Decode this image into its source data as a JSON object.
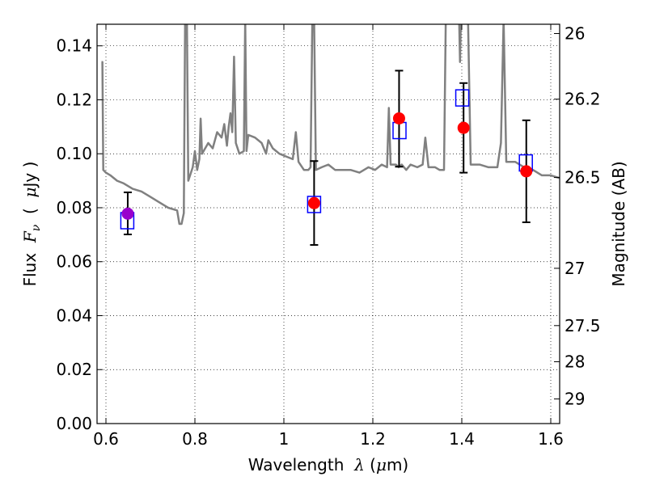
{
  "chart_data": {
    "type": "scatter",
    "xlabel_prefix": "Wavelength  ",
    "xlabel_symbol": "λ",
    "xlabel_suffix": " (",
    "xlabel_mu": "μ",
    "xlabel_unit": "m)",
    "ylabel_prefix": "Flux  ",
    "ylabel_symbol": "F",
    "ylabel_sub": "ν",
    "ylabel_paren_open": "  (  ",
    "ylabel_mu": "μ",
    "ylabel_unit": "Jy  )",
    "y2label": "Magnitude (AB)",
    "xlim": [
      0.58,
      1.62
    ],
    "ylim": [
      0.0,
      0.148
    ],
    "grid": true,
    "x_ticks": [
      {
        "value": 0.6,
        "label": "0.6"
      },
      {
        "value": 0.8,
        "label": "0.8"
      },
      {
        "value": 1.0,
        "label": "1"
      },
      {
        "value": 1.2,
        "label": "1.2"
      },
      {
        "value": 1.4,
        "label": "1.4"
      },
      {
        "value": 1.6,
        "label": "1.6"
      }
    ],
    "y_ticks": [
      {
        "value": 0.0,
        "label": "0.00"
      },
      {
        "value": 0.02,
        "label": "0.02"
      },
      {
        "value": 0.04,
        "label": "0.04"
      },
      {
        "value": 0.06,
        "label": "0.06"
      },
      {
        "value": 0.08,
        "label": "0.08"
      },
      {
        "value": 0.1,
        "label": "0.10"
      },
      {
        "value": 0.12,
        "label": "0.12"
      },
      {
        "value": 0.14,
        "label": "0.14"
      }
    ],
    "y2_ticks": [
      {
        "mag": 26.0,
        "label": "26"
      },
      {
        "mag": 26.2,
        "label": "26.2"
      },
      {
        "mag": 26.5,
        "label": "26.5"
      },
      {
        "mag": 27.0,
        "label": "27"
      },
      {
        "mag": 27.5,
        "label": "27.5"
      },
      {
        "mag": 28.0,
        "label": "28"
      },
      {
        "mag": 29.0,
        "label": "29"
      }
    ],
    "model_spectrum": {
      "color": "#808080",
      "points": [
        [
          0.59,
          0.134
        ],
        [
          0.592,
          0.134
        ],
        [
          0.594,
          0.094
        ],
        [
          0.6,
          0.093
        ],
        [
          0.61,
          0.092
        ],
        [
          0.625,
          0.09
        ],
        [
          0.64,
          0.089
        ],
        [
          0.66,
          0.087
        ],
        [
          0.68,
          0.086
        ],
        [
          0.7,
          0.084
        ],
        [
          0.72,
          0.082
        ],
        [
          0.74,
          0.08
        ],
        [
          0.76,
          0.079
        ],
        [
          0.765,
          0.074
        ],
        [
          0.77,
          0.074
        ],
        [
          0.775,
          0.078
        ],
        [
          0.778,
          0.15
        ],
        [
          0.782,
          0.15
        ],
        [
          0.785,
          0.09
        ],
        [
          0.795,
          0.095
        ],
        [
          0.8,
          0.101
        ],
        [
          0.805,
          0.094
        ],
        [
          0.81,
          0.098
        ],
        [
          0.813,
          0.113
        ],
        [
          0.816,
          0.1
        ],
        [
          0.83,
          0.104
        ],
        [
          0.84,
          0.102
        ],
        [
          0.85,
          0.108
        ],
        [
          0.86,
          0.106
        ],
        [
          0.866,
          0.111
        ],
        [
          0.872,
          0.103
        ],
        [
          0.876,
          0.11
        ],
        [
          0.88,
          0.115
        ],
        [
          0.884,
          0.108
        ],
        [
          0.888,
          0.136
        ],
        [
          0.892,
          0.104
        ],
        [
          0.9,
          0.1
        ],
        [
          0.91,
          0.101
        ],
        [
          0.913,
          0.15
        ],
        [
          0.916,
          0.101
        ],
        [
          0.92,
          0.107
        ],
        [
          0.935,
          0.106
        ],
        [
          0.95,
          0.104
        ],
        [
          0.96,
          0.1
        ],
        [
          0.965,
          0.105
        ],
        [
          0.975,
          0.102
        ],
        [
          0.99,
          0.1
        ],
        [
          1.005,
          0.099
        ],
        [
          1.02,
          0.098
        ],
        [
          1.027,
          0.108
        ],
        [
          1.033,
          0.097
        ],
        [
          1.045,
          0.094
        ],
        [
          1.055,
          0.094
        ],
        [
          1.06,
          0.095
        ],
        [
          1.064,
          0.15
        ],
        [
          1.068,
          0.15
        ],
        [
          1.072,
          0.094
        ],
        [
          1.085,
          0.095
        ],
        [
          1.1,
          0.096
        ],
        [
          1.115,
          0.094
        ],
        [
          1.13,
          0.094
        ],
        [
          1.15,
          0.094
        ],
        [
          1.17,
          0.093
        ],
        [
          1.19,
          0.095
        ],
        [
          1.205,
          0.094
        ],
        [
          1.22,
          0.096
        ],
        [
          1.232,
          0.095
        ],
        [
          1.236,
          0.117
        ],
        [
          1.24,
          0.096
        ],
        [
          1.252,
          0.096
        ],
        [
          1.258,
          0.095
        ],
        [
          1.265,
          0.096
        ],
        [
          1.275,
          0.094
        ],
        [
          1.285,
          0.096
        ],
        [
          1.3,
          0.095
        ],
        [
          1.312,
          0.096
        ],
        [
          1.318,
          0.106
        ],
        [
          1.325,
          0.095
        ],
        [
          1.34,
          0.095
        ],
        [
          1.35,
          0.094
        ],
        [
          1.36,
          0.094
        ],
        [
          1.364,
          0.15
        ],
        [
          1.384,
          0.15
        ],
        [
          1.394,
          0.15
        ],
        [
          1.396,
          0.134
        ],
        [
          1.398,
          0.15
        ],
        [
          1.414,
          0.15
        ],
        [
          1.42,
          0.096
        ],
        [
          1.44,
          0.096
        ],
        [
          1.46,
          0.095
        ],
        [
          1.48,
          0.095
        ],
        [
          1.488,
          0.104
        ],
        [
          1.494,
          0.15
        ],
        [
          1.5,
          0.097
        ],
        [
          1.52,
          0.097
        ],
        [
          1.54,
          0.095
        ],
        [
          1.56,
          0.094
        ],
        [
          1.58,
          0.092
        ],
        [
          1.6,
          0.092
        ],
        [
          1.62,
          0.091
        ]
      ]
    },
    "model_points": {
      "color": "#0000ff",
      "points": [
        {
          "x": 0.648,
          "y": 0.0752
        },
        {
          "x": 1.068,
          "y": 0.0812
        },
        {
          "x": 1.26,
          "y": 0.1086
        },
        {
          "x": 1.401,
          "y": 0.1207
        },
        {
          "x": 1.544,
          "y": 0.0966
        }
      ]
    },
    "observed_points": {
      "color": "#ff0000",
      "highlight_color": "#9900cc",
      "points": [
        {
          "x": 0.649,
          "y": 0.0778,
          "err_lo": 0.0701,
          "err_hi": 0.0857,
          "highlight": true
        },
        {
          "x": 1.068,
          "y": 0.0817,
          "err_lo": 0.0662,
          "err_hi": 0.0973,
          "highlight": false
        },
        {
          "x": 1.259,
          "y": 0.1131,
          "err_lo": 0.0952,
          "err_hi": 0.1308,
          "highlight": false
        },
        {
          "x": 1.404,
          "y": 0.1096,
          "err_lo": 0.093,
          "err_hi": 0.1262,
          "highlight": false
        },
        {
          "x": 1.545,
          "y": 0.0935,
          "err_lo": 0.0746,
          "err_hi": 0.1124,
          "highlight": false
        }
      ]
    }
  }
}
